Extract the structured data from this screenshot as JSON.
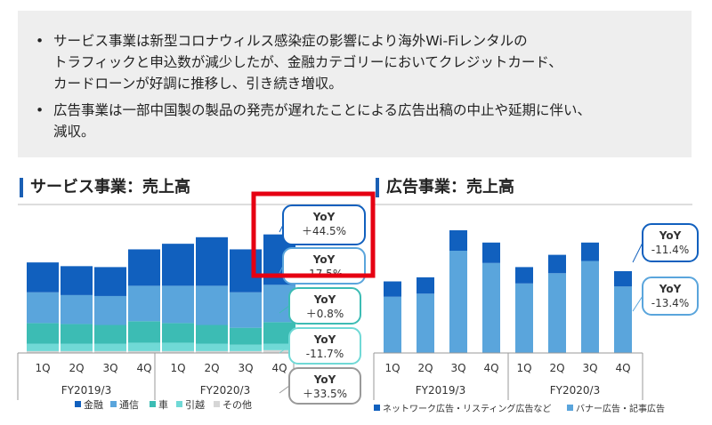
{
  "summary": {
    "bullets": [
      {
        "lines": [
          "サービス事業は新型コロナウィルス感染症の影響により海外Wi-Fiレンタルの",
          "トラフィックと申込数が減少したが、金融カテゴリーにおいてクレジットカード、",
          "カードローンが好調に推移し、引き続き増収。"
        ]
      },
      {
        "lines": [
          "広告事業は一部中国製の製品の発売が遅れたことによる広告出稿の中止や延期に伴い、",
          "減収。"
        ]
      }
    ]
  },
  "colors": {
    "finance": "#1160be",
    "telecom": "#5aa5dc",
    "car": "#3cbcb4",
    "moving": "#70d9d6",
    "other": "#d6d6d6",
    "network_ads": "#1160be",
    "banner_ads": "#5aa5dc",
    "highlight": "#e60012"
  },
  "chart_data": [
    {
      "type": "bar",
      "stacked": true,
      "title": "サービス事業：売上高",
      "quarters": [
        "1Q",
        "2Q",
        "3Q",
        "4Q",
        "1Q",
        "2Q",
        "3Q",
        "4Q"
      ],
      "groups": [
        "FY2019/3",
        "FY2020/3"
      ],
      "series": [
        {
          "name": "その他",
          "values": [
            2,
            2,
            2,
            2,
            2,
            2,
            2,
            3
          ]
        },
        {
          "name": "引越",
          "values": [
            8,
            8,
            8,
            9,
            9,
            8,
            7,
            7
          ]
        },
        {
          "name": "車",
          "values": [
            22,
            21,
            20,
            23,
            21,
            20,
            18,
            23
          ]
        },
        {
          "name": "通信",
          "values": [
            33,
            31,
            31,
            38,
            40,
            42,
            38,
            40
          ]
        },
        {
          "name": "金融",
          "values": [
            32,
            31,
            31,
            39,
            45,
            52,
            46,
            54
          ]
        }
      ],
      "callouts": [
        {
          "label": "YoY",
          "value": "＋44.5%"
        },
        {
          "label": "YoY",
          "value": "-17.5%"
        },
        {
          "label": "YoY",
          "value": "＋0.8%"
        },
        {
          "label": "YoY",
          "value": "-11.7%"
        },
        {
          "label": "YoY",
          "value": "＋33.5%"
        }
      ],
      "legend": [
        "金融",
        "通信",
        "車",
        "引越",
        "その他"
      ]
    },
    {
      "type": "bar",
      "stacked": true,
      "title": "広告事業：売上高",
      "quarters": [
        "1Q",
        "2Q",
        "3Q",
        "4Q",
        "1Q",
        "2Q",
        "3Q",
        "4Q"
      ],
      "groups": [
        "FY2019/3",
        "FY2020/3"
      ],
      "series": [
        {
          "name": "バナー広告・記事広告",
          "values": [
            55,
            58,
            100,
            88,
            68,
            78,
            90,
            65
          ]
        },
        {
          "name": "ネットワーク広告・リスティング広告など",
          "values": [
            15,
            16,
            20,
            20,
            16,
            18,
            18,
            15
          ]
        }
      ],
      "callouts": [
        {
          "label": "YoY",
          "value": "-11.4%"
        },
        {
          "label": "YoY",
          "value": "-13.4%"
        }
      ],
      "legend": [
        "ネットワーク広告・リスティング広告など",
        "バナー広告・記事広告"
      ]
    }
  ]
}
